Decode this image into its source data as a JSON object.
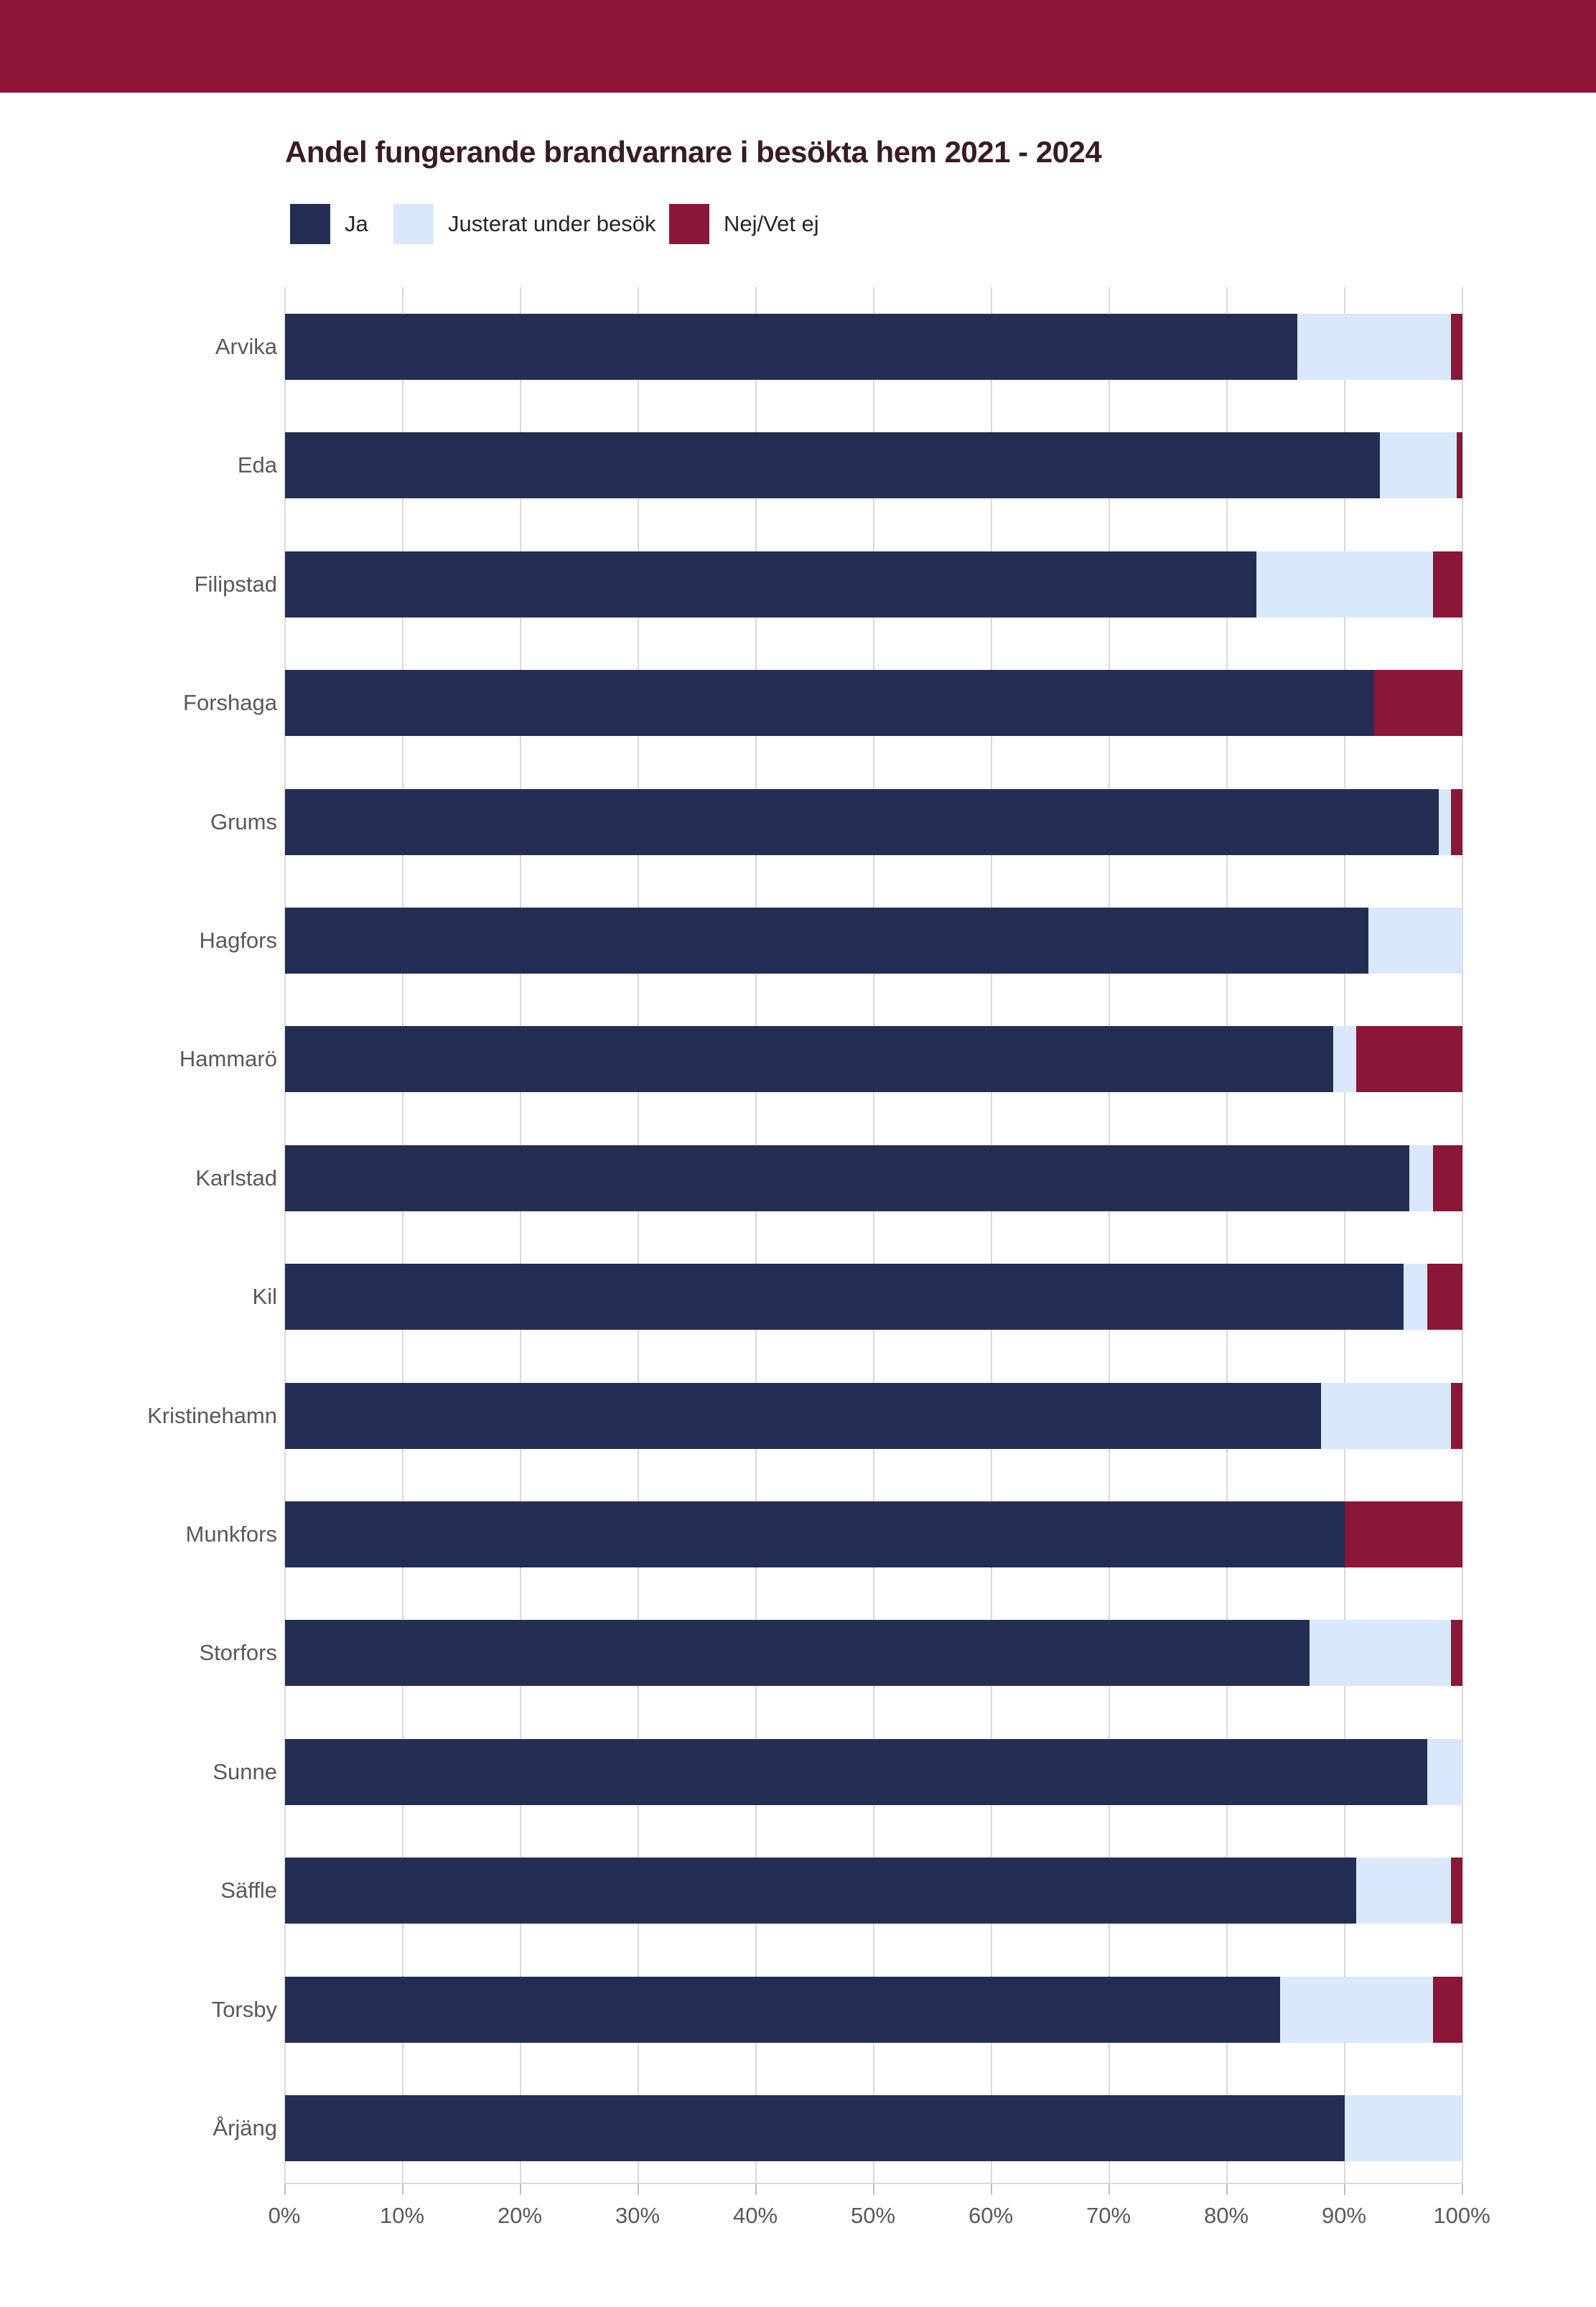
{
  "header": {
    "background_color": "#8c1538"
  },
  "chart_data": {
    "type": "bar",
    "variant": "horizontal-stacked-100-percent",
    "title": "Andel fungerande brandvarnare i besökta hem 2021 - 2024",
    "title_color": "#3a1b22",
    "categories": [
      "Arvika",
      "Eda",
      "Filipstad",
      "Forshaga",
      "Grums",
      "Hagfors",
      "Hammarö",
      "Karlstad",
      "Kil",
      "Kristinehamn",
      "Munkfors",
      "Storfors",
      "Sunne",
      "Säffle",
      "Torsby",
      "Årjäng"
    ],
    "series": [
      {
        "name": "Ja",
        "color": "#242e55",
        "values": [
          86,
          93,
          82.5,
          92.5,
          98,
          92,
          89,
          95.5,
          95,
          88,
          90,
          87,
          97,
          91,
          84.5,
          90
        ]
      },
      {
        "name": "Justerat under besök",
        "color": "#d9e8fa",
        "values": [
          13,
          6.5,
          15,
          0,
          1,
          8,
          2,
          2,
          2,
          11,
          0,
          12,
          3,
          8,
          13,
          10
        ]
      },
      {
        "name": "Nej/Vet ej",
        "color": "#8a1638",
        "values": [
          1,
          0.5,
          2.5,
          7.5,
          1,
          0,
          9,
          2.5,
          3,
          1,
          10,
          1,
          0,
          1,
          2.5,
          0
        ]
      }
    ],
    "x_ticks": [
      "0%",
      "10%",
      "20%",
      "30%",
      "40%",
      "50%",
      "60%",
      "70%",
      "80%",
      "90%",
      "100%"
    ],
    "xlim": [
      0,
      100
    ],
    "unit": "%",
    "grid": "vertical",
    "legend_position": "top-left",
    "axis_text_color": "#595959",
    "gridline_color": "#d9d9d9"
  }
}
